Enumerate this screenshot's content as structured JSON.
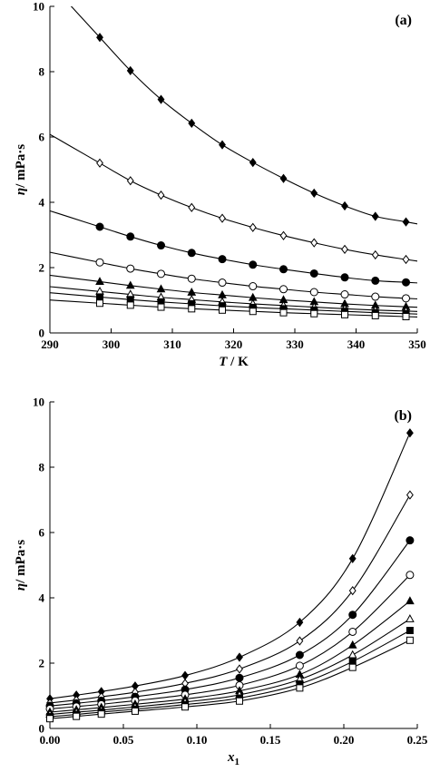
{
  "chart_data": [
    {
      "type": "line",
      "panel_label": "(a)",
      "ylabel_symbol": "η",
      "ylabel_unit": "/ mPa·s",
      "xlabel_symbol": "T",
      "xlabel_unit": " / K",
      "xlim": [
        290,
        350
      ],
      "ylim": [
        0,
        10
      ],
      "xticks": [
        "290",
        "300",
        "310",
        "320",
        "330",
        "340",
        "350"
      ],
      "yticks": [
        "0",
        "2",
        "4",
        "6",
        "8",
        "10"
      ],
      "grid": false,
      "legend": "none",
      "x": [
        298.15,
        303.15,
        308.15,
        313.15,
        318.15,
        323.15,
        328.15,
        333.15,
        338.15,
        343.15,
        348.15
      ],
      "series": [
        {
          "marker": "filled-diamond",
          "values": [
            9.05,
            8.03,
            7.15,
            6.42,
            5.76,
            5.22,
            4.73,
            4.28,
            3.89,
            3.57,
            3.4
          ]
        },
        {
          "marker": "open-diamond",
          "values": [
            5.2,
            4.66,
            4.22,
            3.84,
            3.51,
            3.23,
            2.98,
            2.76,
            2.56,
            2.39,
            2.25
          ]
        },
        {
          "marker": "filled-circle",
          "values": [
            3.25,
            2.95,
            2.68,
            2.45,
            2.26,
            2.09,
            1.95,
            1.82,
            1.7,
            1.6,
            1.55
          ]
        },
        {
          "marker": "open-circle",
          "values": [
            2.16,
            1.97,
            1.81,
            1.66,
            1.54,
            1.43,
            1.34,
            1.25,
            1.18,
            1.11,
            1.06
          ]
        },
        {
          "marker": "filled-triangle",
          "values": [
            1.57,
            1.45,
            1.34,
            1.24,
            1.16,
            1.08,
            1.01,
            0.95,
            0.89,
            0.84,
            0.8
          ]
        },
        {
          "marker": "open-triangle",
          "values": [
            1.27,
            1.18,
            1.09,
            1.02,
            0.95,
            0.89,
            0.84,
            0.79,
            0.74,
            0.7,
            0.67
          ]
        },
        {
          "marker": "filled-square",
          "values": [
            1.1,
            1.02,
            0.95,
            0.89,
            0.83,
            0.78,
            0.74,
            0.7,
            0.66,
            0.62,
            0.59
          ]
        },
        {
          "marker": "open-square",
          "values": [
            0.91,
            0.85,
            0.79,
            0.74,
            0.7,
            0.66,
            0.62,
            0.59,
            0.56,
            0.53,
            0.5
          ]
        }
      ]
    },
    {
      "type": "line",
      "panel_label": "(b)",
      "ylabel_symbol": "η",
      "ylabel_unit": "/ mPa·s",
      "xlabel_symbol": "x",
      "xlabel_sub": "1",
      "xlim": [
        0,
        0.25
      ],
      "ylim": [
        0,
        10
      ],
      "xticks": [
        "0.00",
        "0.05",
        "0.10",
        "0.15",
        "0.20",
        "0.25"
      ],
      "yticks": [
        "0",
        "2",
        "4",
        "6",
        "8",
        "10"
      ],
      "grid": false,
      "legend": "none",
      "x": [
        0.0,
        0.018,
        0.035,
        0.058,
        0.092,
        0.129,
        0.17,
        0.206,
        0.245
      ],
      "series": [
        {
          "marker": "filled-diamond",
          "values": [
            0.91,
            1.02,
            1.13,
            1.3,
            1.62,
            2.18,
            3.25,
            5.2,
            9.05
          ]
        },
        {
          "marker": "open-diamond",
          "values": [
            0.78,
            0.87,
            0.97,
            1.11,
            1.38,
            1.82,
            2.68,
            4.22,
            7.15
          ]
        },
        {
          "marker": "filled-circle",
          "values": [
            0.69,
            0.77,
            0.85,
            0.97,
            1.19,
            1.55,
            2.25,
            3.48,
            5.76
          ]
        },
        {
          "marker": "open-circle",
          "values": [
            0.6,
            0.67,
            0.74,
            0.85,
            1.03,
            1.32,
            1.92,
            2.96,
            4.7
          ]
        },
        {
          "marker": "filled-triangle",
          "values": [
            0.5,
            0.57,
            0.64,
            0.74,
            0.9,
            1.15,
            1.65,
            2.55,
            3.9
          ]
        },
        {
          "marker": "open-triangle",
          "values": [
            0.43,
            0.5,
            0.56,
            0.66,
            0.81,
            1.03,
            1.5,
            2.25,
            3.35
          ]
        },
        {
          "marker": "filled-square",
          "values": [
            0.36,
            0.43,
            0.5,
            0.59,
            0.73,
            0.93,
            1.36,
            2.05,
            3.0
          ]
        },
        {
          "marker": "open-square",
          "values": [
            0.3,
            0.37,
            0.44,
            0.53,
            0.66,
            0.84,
            1.24,
            1.87,
            2.7
          ]
        }
      ]
    }
  ]
}
